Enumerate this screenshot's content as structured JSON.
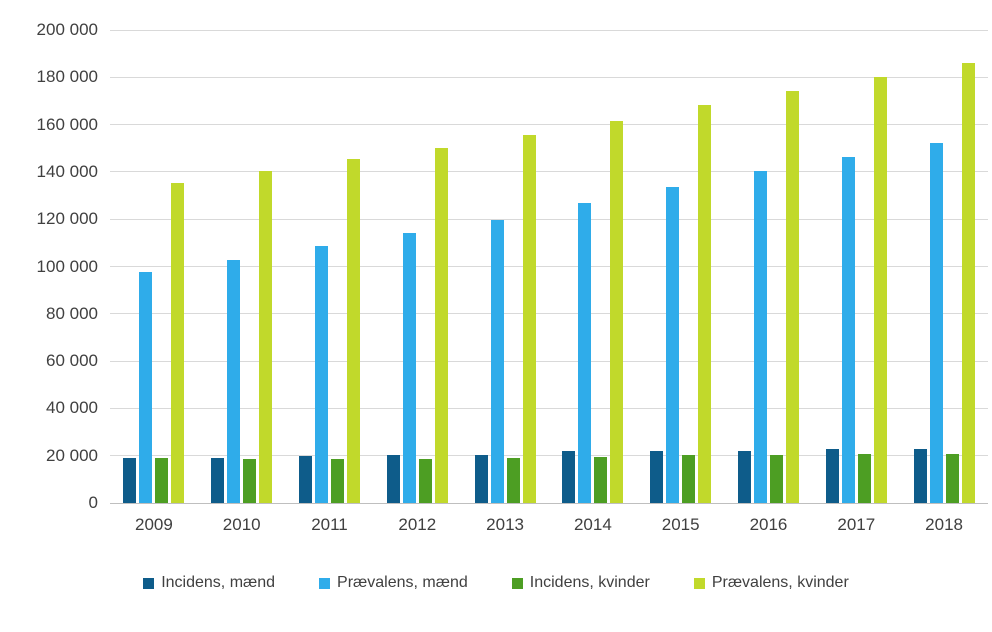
{
  "chart_data": {
    "type": "bar",
    "title": "",
    "xlabel": "",
    "ylabel": "",
    "categories": [
      "2009",
      "2010",
      "2011",
      "2012",
      "2013",
      "2014",
      "2015",
      "2016",
      "2017",
      "2018"
    ],
    "series": [
      {
        "name": "Incidens, mænd",
        "color": "#0E5C8A",
        "values": [
          18900,
          18900,
          19700,
          20200,
          20300,
          22000,
          21900,
          22200,
          22700,
          22700
        ]
      },
      {
        "name": "Prævalens, mænd",
        "color": "#2FACEA",
        "values": [
          97500,
          102600,
          108500,
          114100,
          119700,
          126900,
          133600,
          140400,
          146500,
          152200
        ]
      },
      {
        "name": "Incidens, kvinder",
        "color": "#4D9E23",
        "values": [
          18900,
          18400,
          18800,
          18700,
          19000,
          19500,
          20300,
          20300,
          20700,
          20800
        ]
      },
      {
        "name": "Prævalens, kvinder",
        "color": "#C1D92B",
        "values": [
          135400,
          140400,
          145300,
          150300,
          155700,
          161700,
          168100,
          174100,
          180200,
          186100
        ]
      }
    ],
    "ylim": [
      0,
      200000
    ],
    "ytick_step": 20000,
    "ytick_labels": [
      "0",
      "20 000",
      "40 000",
      "60 000",
      "80 000",
      "100 000",
      "120 000",
      "140 000",
      "160 000",
      "180 000",
      "200 000"
    ],
    "grid": true,
    "legend_position": "bottom",
    "colors": {
      "background": "#FFFFFF",
      "text": "#404040",
      "gridline": "#D9D9D9",
      "axis_line": "#BFBFBF"
    }
  }
}
